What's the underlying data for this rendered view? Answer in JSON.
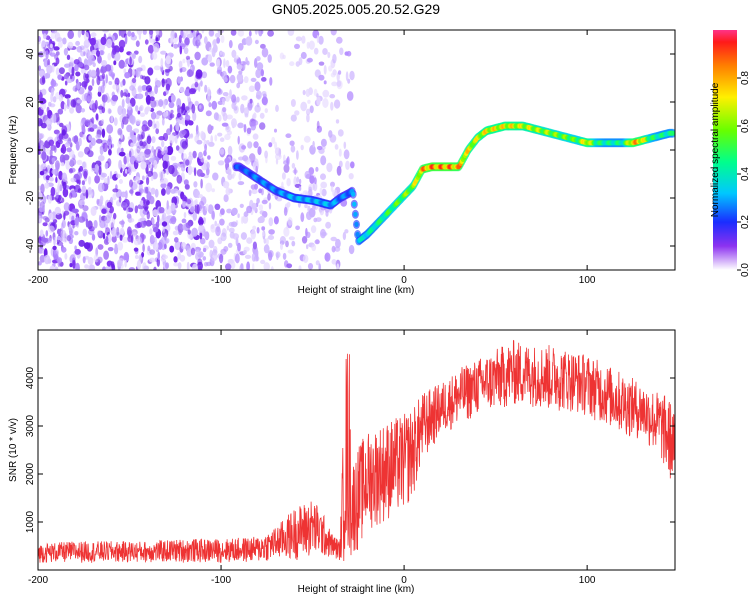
{
  "page": {
    "title": "GN05.2025.005.20.52.G29"
  },
  "chart_data": [
    {
      "type": "heatmap",
      "title": "GN05.2025.005.20.52.G29",
      "xlabel": "Height of straight line (km)",
      "ylabel": "Frequency (Hz)",
      "xlim": [
        -200,
        148
      ],
      "ylim": [
        -50,
        50
      ],
      "x_ticks": [
        -200,
        -100,
        0,
        100
      ],
      "y_ticks": [
        -40,
        -20,
        0,
        20,
        40
      ],
      "grid": false,
      "colorbar": {
        "label": "Normalized spectral amplitude",
        "range": [
          0,
          1
        ],
        "ticks": [
          0.0,
          0.2,
          0.4,
          0.6,
          0.8
        ]
      },
      "signal_track": {
        "x": [
          -90,
          -80,
          -70,
          -60,
          -50,
          -45,
          -40,
          -35,
          -30,
          -28,
          -25,
          -20,
          -15,
          -10,
          -5,
          0,
          5,
          10,
          15,
          20,
          25,
          30,
          35,
          40,
          45,
          50,
          55,
          60,
          65,
          70,
          75,
          80,
          85,
          90,
          95,
          100,
          105,
          110,
          115,
          120,
          125,
          130,
          135,
          140,
          145
        ],
        "y": [
          -7,
          -12,
          -17,
          -20,
          -21,
          -22,
          -23,
          -20,
          -18,
          -17,
          -38,
          -35,
          -31,
          -27,
          -23,
          -19,
          -15,
          -8,
          -7,
          -7,
          -7,
          -7,
          0,
          5,
          8,
          9,
          10,
          10,
          10,
          9,
          8,
          7,
          6,
          5,
          4,
          3,
          3,
          3,
          3,
          3,
          3,
          4,
          5,
          6,
          7
        ],
        "amplitude": [
          0.25,
          0.3,
          0.3,
          0.35,
          0.35,
          0.35,
          0.35,
          0.3,
          0.3,
          0.3,
          0.4,
          0.45,
          0.5,
          0.55,
          0.6,
          0.65,
          0.7,
          0.9,
          0.95,
          0.95,
          0.95,
          0.9,
          0.8,
          0.75,
          0.8,
          0.8,
          0.8,
          0.8,
          0.75,
          0.75,
          0.7,
          0.7,
          0.65,
          0.65,
          0.6,
          0.85,
          0.55,
          0.5,
          0.5,
          0.5,
          0.9,
          0.85,
          0.55,
          0.5,
          0.5
        ]
      }
    },
    {
      "type": "line",
      "xlabel": "Height of straight line (km)",
      "ylabel": "SNR (10 * v/v)",
      "xlim": [
        -200,
        148
      ],
      "ylim": [
        0,
        5000
      ],
      "x_ticks": [
        -200,
        -100,
        0,
        100
      ],
      "y_ticks": [
        1000,
        2000,
        3000,
        4000
      ],
      "grid": false,
      "series": [
        {
          "color": "#ee3333",
          "envelope": {
            "x": [
              -200,
              -180,
              -160,
              -140,
              -120,
              -100,
              -80,
              -70,
              -60,
              -50,
              -45,
              -40,
              -35,
              -32,
              -30,
              -29,
              -28,
              -25,
              -20,
              -10,
              0,
              5,
              10,
              20,
              30,
              40,
              50,
              60,
              70,
              80,
              90,
              100,
              110,
              120,
              130,
              140,
              145,
              148
            ],
            "low": [
              150,
              150,
              150,
              150,
              150,
              150,
              150,
              200,
              200,
              250,
              250,
              250,
              200,
              100,
              80,
              200,
              300,
              400,
              800,
              1000,
              1200,
              1500,
              2200,
              2800,
              3000,
              3200,
              3300,
              3400,
              3400,
              3300,
              3300,
              3200,
              3000,
              2800,
              2700,
              2300,
              1800,
              2000
            ],
            "high": [
              550,
              600,
              600,
              600,
              650,
              650,
              700,
              900,
              1300,
              1500,
              1250,
              800,
              600,
              4600,
              4950,
              2500,
              2300,
              2600,
              2900,
              3100,
              3250,
              3400,
              3700,
              3900,
              4200,
              4400,
              4600,
              4800,
              4700,
              4700,
              4600,
              4500,
              4300,
              4100,
              3900,
              3700,
              3600,
              3200
            ]
          }
        }
      ]
    }
  ]
}
